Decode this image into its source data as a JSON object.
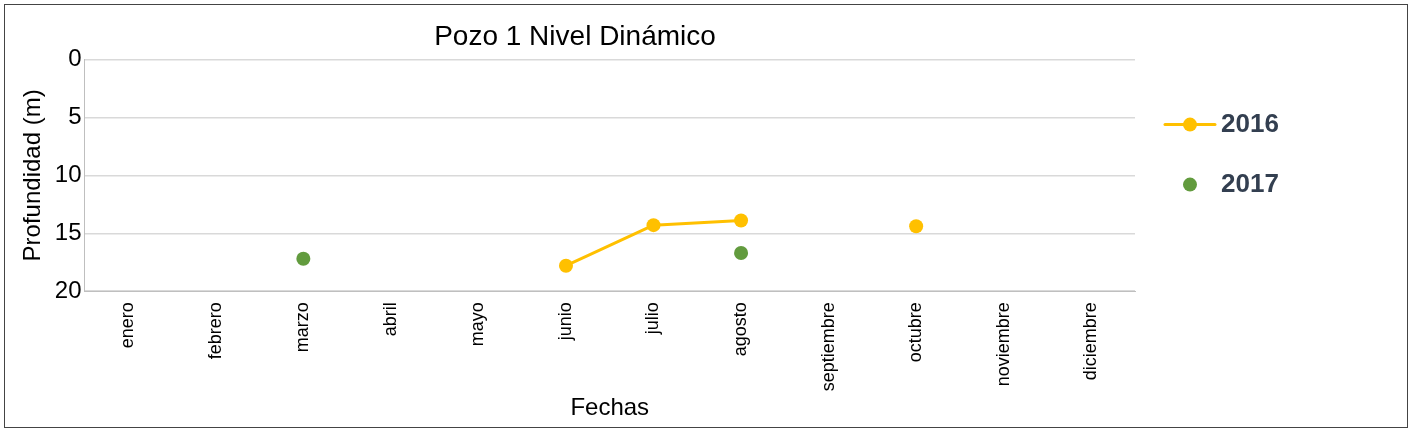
{
  "chart_data": {
    "type": "line",
    "title": "Pozo 1 Nivel Dinámico",
    "xlabel": "Fechas",
    "ylabel": "Profundidad (m)",
    "categories": [
      "enero",
      "febrero",
      "marzo",
      "abril",
      "mayo",
      "junio",
      "julio",
      "agosto",
      "septiembre",
      "octubre",
      "noviembre",
      "diciembre"
    ],
    "series": [
      {
        "name": "2016",
        "color": "#ffc000",
        "values": [
          null,
          null,
          null,
          null,
          null,
          17.8,
          14.3,
          13.9,
          null,
          14.4,
          null,
          null
        ]
      },
      {
        "name": "2017",
        "type": "scatter",
        "color": "#629b3e",
        "values": [
          null,
          null,
          17.2,
          null,
          null,
          null,
          null,
          16.7,
          null,
          null,
          null,
          null
        ]
      }
    ],
    "ylim": [
      20,
      0
    ],
    "yticks": [
      0,
      5,
      10,
      15,
      20
    ],
    "grid": "y",
    "legend": "right",
    "marker": "circle",
    "line_style": "solid"
  }
}
